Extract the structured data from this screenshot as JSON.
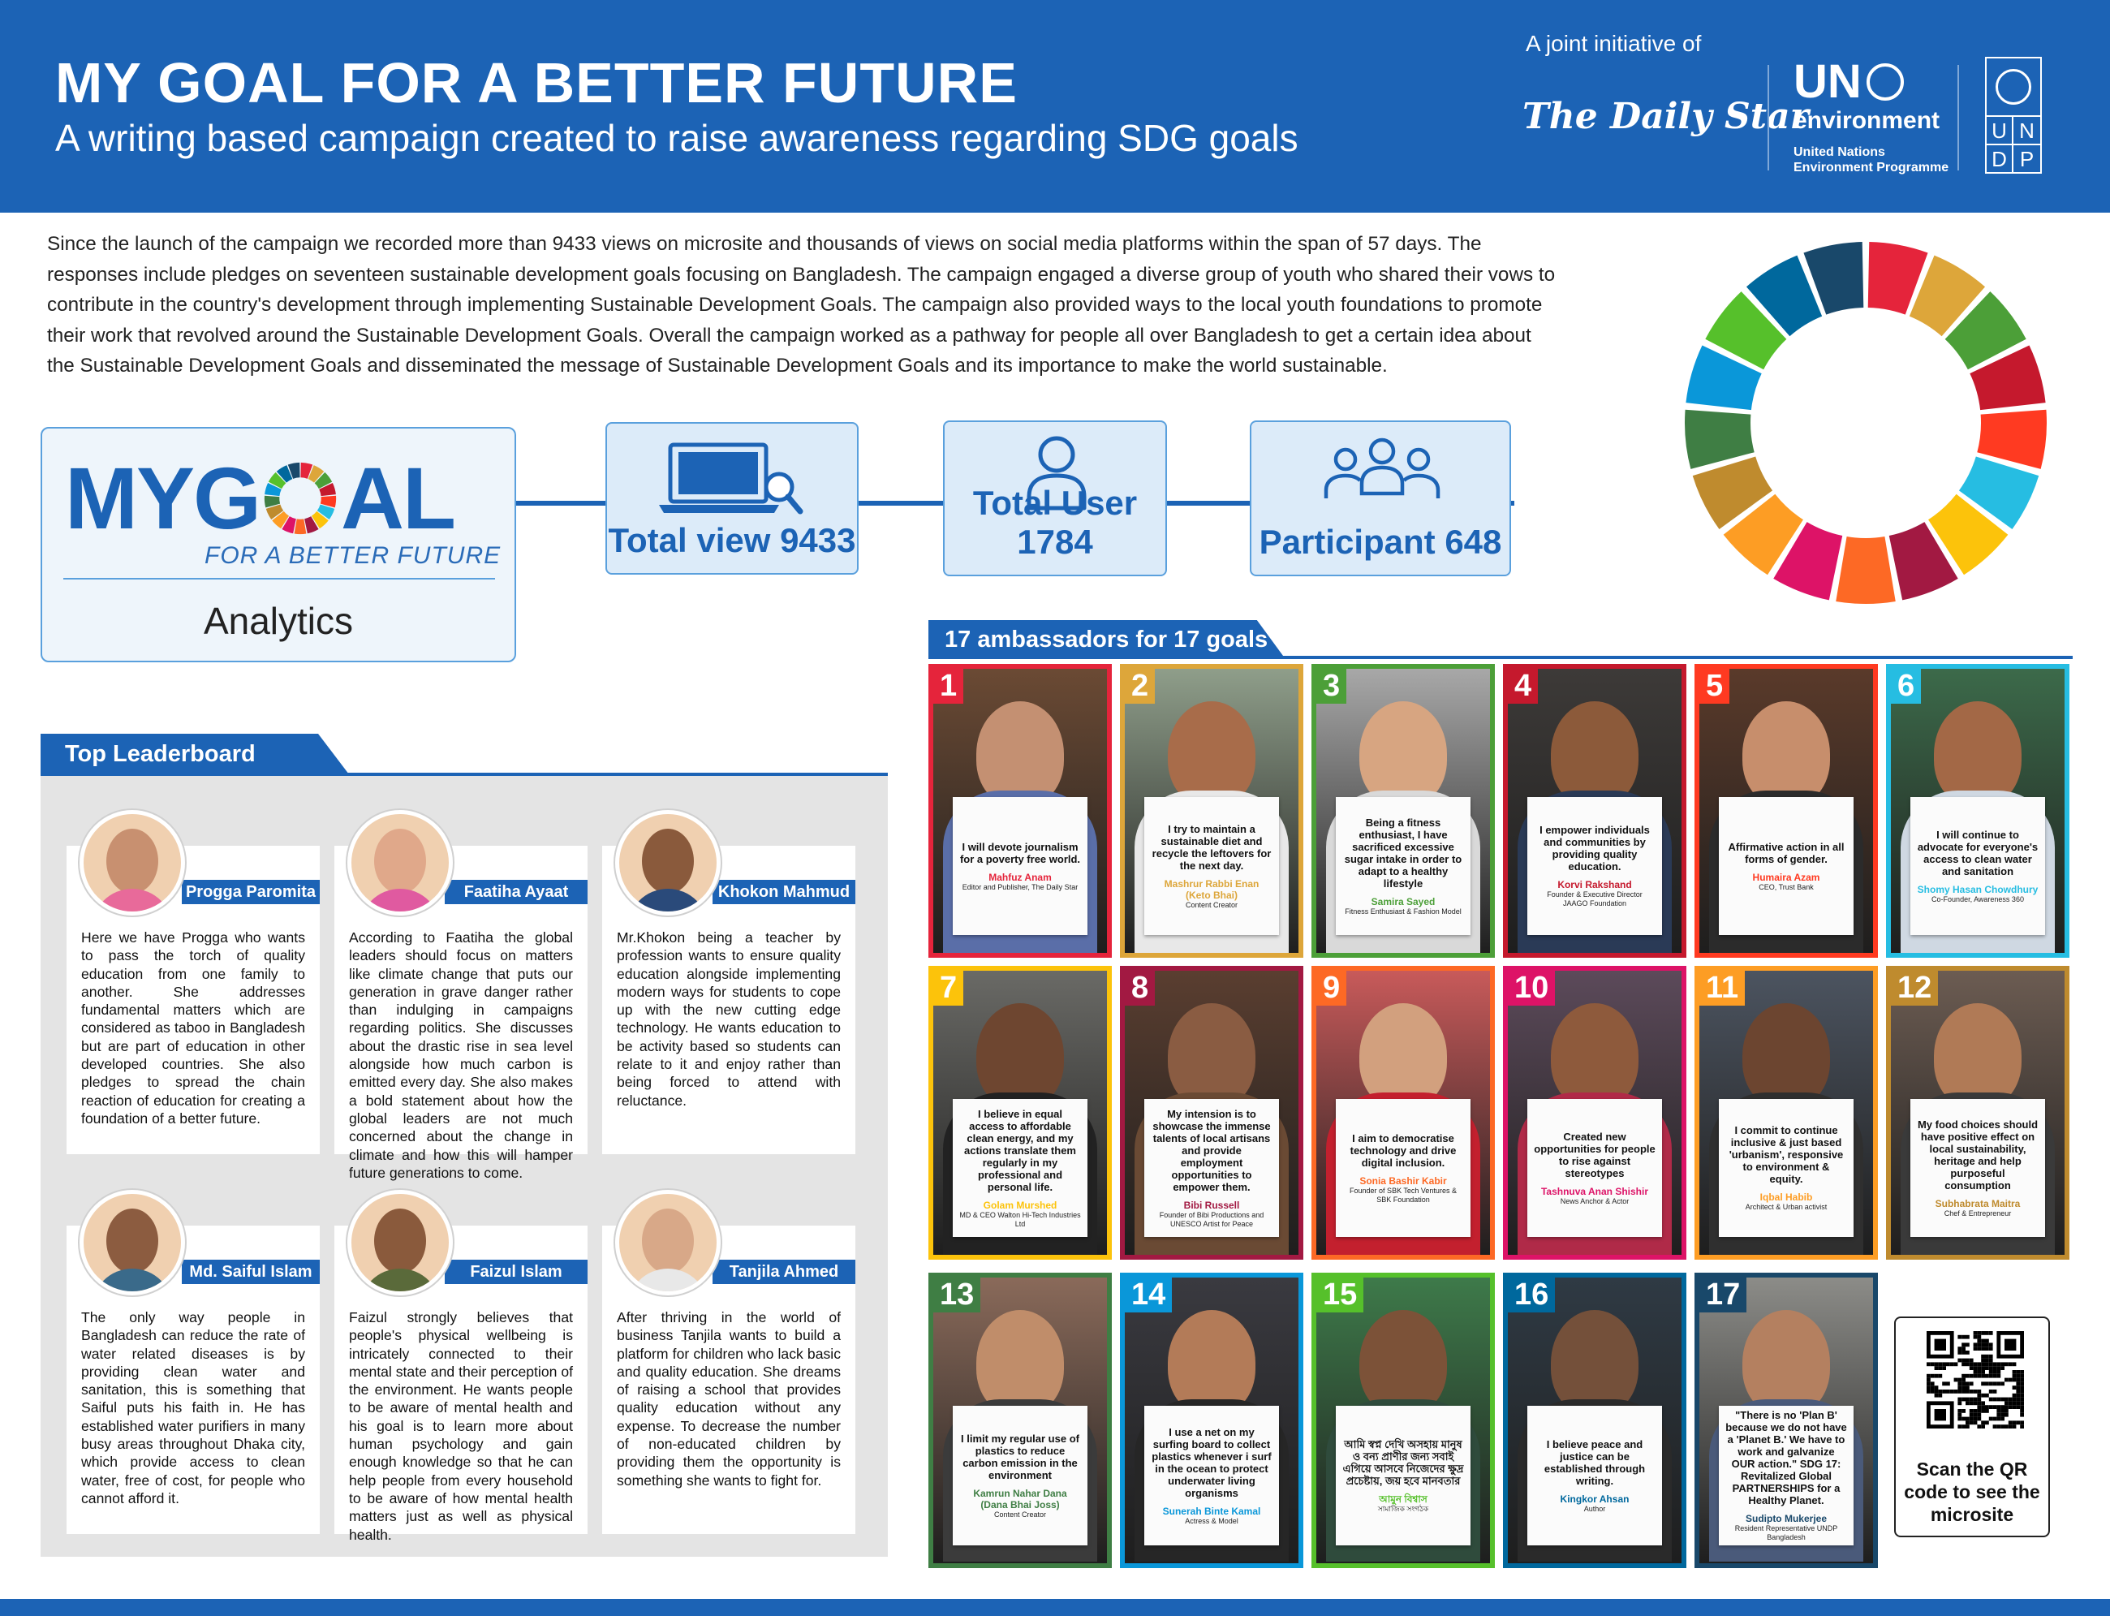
{
  "header": {
    "title": "MY GOAL FOR A BETTER FUTURE",
    "subtitle": "A writing based campaign created to raise awareness regarding SDG goals",
    "joint_label": "A joint initiative of",
    "daily_star": "The Daily Star",
    "unep_un": "UN",
    "unep_env": "environment",
    "unep_line1": "United Nations",
    "unep_line2": "Environment Programme",
    "undp_letters": [
      "U",
      "N",
      "D",
      "P"
    ]
  },
  "intro": "Since the launch of the campaign we recorded more than 9433 views on microsite and thousands of views on social media platforms within the span of 57 days. The responses include pledges on seventeen sustainable development goals focusing on Bangladesh. The campaign engaged a diverse group of youth who shared their vows to contribute in the country's development through implementing Sustainable Development Goals. The campaign also provided ways to the local youth foundations to promote their work that revolved around the Sustainable Development Goals. Overall the campaign worked as a pathway for people all over Bangladesh to get a certain idea about the Sustainable Development Goals and disseminated the message of Sustainable Development Goals and its importance to make the world sustainable.",
  "sdg_colors": [
    "#e5243b",
    "#dda63a",
    "#4c9f38",
    "#c5192d",
    "#ff3a21",
    "#26bde2",
    "#fcc30b",
    "#a21942",
    "#fd6925",
    "#dd1367",
    "#fd9d24",
    "#bf8b2e",
    "#3f7e44",
    "#0a97d9",
    "#56c02b",
    "#00689d",
    "#19486a"
  ],
  "analytics": {
    "logo_my": "MY",
    "logo_g": "G",
    "logo_al": "AL",
    "tagline": "FOR A BETTER FUTURE",
    "label": "Analytics",
    "total_view": "Total view 9433",
    "total_user": "Total User 1784",
    "participant": "Participant 648"
  },
  "ambassadors": {
    "heading": "17 ambassadors for 17 goals",
    "items": [
      {
        "n": "1",
        "quote": "I will devote journalism for a poverty free world.",
        "name": "Mahfuz Anam",
        "role": "Editor and Publisher, The Daily Star"
      },
      {
        "n": "2",
        "quote": "I try to maintain a sustainable diet and recycle the leftovers for the next day.",
        "name": "Mashrur Rabbi Enan (Keto Bhai)",
        "role": "Content Creator"
      },
      {
        "n": "3",
        "quote": "Being a fitness enthusiast, I have sacrificed excessive sugar intake in order to adapt to a healthy lifestyle",
        "name": "Samira Sayed",
        "role": "Fitness Enthusiast & Fashion Model"
      },
      {
        "n": "4",
        "quote": "I empower individuals and communities by providing quality education.",
        "name": "Korvi Rakshand",
        "role": "Founder & Executive Director JAAGO Foundation"
      },
      {
        "n": "5",
        "quote": "Affirmative action in all forms of gender.",
        "name": "Humaira Azam",
        "role": "CEO, Trust Bank"
      },
      {
        "n": "6",
        "quote": "I will continue to advocate for everyone's access to clean water and sanitation",
        "name": "Shomy Hasan Chowdhury",
        "role": "Co-Founder, Awareness 360"
      },
      {
        "n": "7",
        "quote": "I believe in equal access to affordable clean energy, and my actions translate them regularly in my professional and personal life.",
        "name": "Golam Murshed",
        "role": "MD & CEO Walton Hi-Tech Industries Ltd"
      },
      {
        "n": "8",
        "quote": "My intension is to showcase the immense talents of local artisans and provide employment opportunities to empower them.",
        "name": "Bibi Russell",
        "role": "Founder of Bibi Productions and UNESCO Artist for Peace"
      },
      {
        "n": "9",
        "quote": "I aim to democratise technology and drive digital inclusion.",
        "name": "Sonia Bashir Kabir",
        "role": "Founder of SBK Tech Ventures & SBK Foundation"
      },
      {
        "n": "10",
        "quote": "Created new opportunities for people to rise against stereotypes",
        "name": "Tashnuva Anan Shishir",
        "role": "News Anchor & Actor"
      },
      {
        "n": "11",
        "quote": "I commit to continue inclusive & just based 'urbanism', responsive to environment & equity.",
        "name": "Iqbal Habib",
        "role": "Architect & Urban activist"
      },
      {
        "n": "12",
        "quote": "My food choices should have positive effect on local sustainability, heritage and help purposeful consumption",
        "name": "Subhabrata Maitra",
        "role": "Chef & Entrepreneur"
      },
      {
        "n": "13",
        "quote": "I limit my regular use of plastics to reduce carbon emission in the environment",
        "name": "Kamrun Nahar Dana (Dana Bhai Joss)",
        "role": "Content Creator"
      },
      {
        "n": "14",
        "quote": "I use a net on my surfing board to collect plastics whenever i surf in the ocean to protect underwater living organisms",
        "name": "Sunerah Binte Kamal",
        "role": "Actress & Model"
      },
      {
        "n": "15",
        "quote": "আমি স্বপ্ন দেখি অসহায় মানুষ ও বন্য প্রাণীর জন্য সবাই এগিয়ে আসবে নিজেদের ক্ষুদ্র প্রচেষ্টায়, জয় হবে মানবতার",
        "name": "আমুন বিশ্বাস",
        "role": "সামাজিক সংগঠক"
      },
      {
        "n": "16",
        "quote": "I believe peace and justice can be established through writing.",
        "name": "Kingkor Ahsan",
        "role": "Author"
      },
      {
        "n": "17",
        "quote": "\"There is no 'Plan B' because we do not have a 'Planet B.' We have to work and galvanize OUR action.\" SDG 17: Revitalized Global PARTNERSHIPS for a Healthy Planet.",
        "name": "Sudipto Mukerjee",
        "role": "Resident Representative UNDP Bangladesh"
      }
    ]
  },
  "qr": {
    "caption": "Scan the QR code to see the microsite"
  },
  "leaderboard": {
    "heading": "Top Leaderboard",
    "entries": [
      {
        "name": "Progga Paromita",
        "text": "Here we have Progga who wants to pass the torch of quality education from one family to another. She addresses fundamental matters which are considered as taboo in Bangladesh but are part of education in other developed countries. She also pledges to spread the chain reaction of education for creating a foundation of a better future."
      },
      {
        "name": "Faatiha Ayaat",
        "text": "According to Faatiha the global leaders should focus on matters like climate change that puts our generation in grave danger rather than indulging in campaigns regarding politics. She discusses about the drastic rise in sea level alongside how much carbon is emitted every day. She also makes a bold statement about how the global leaders are not much concerned about the change in climate and how this will hamper future generations to come."
      },
      {
        "name": "Khokon Mahmud",
        "text": "Mr.Khokon being a teacher by profession wants to ensure quality education alongside implementing modern ways for students to cope up with the new cutting edge technology. He wants education to be activity based so students can relate to it and enjoy rather than being forced to attend with reluctance."
      },
      {
        "name": "Md. Saiful Islam",
        "text": "The only way people in Bangladesh can reduce the rate of water related diseases is by providing clean water and sanitation, this is something that Saiful puts his faith in. He has established water purifiers in many busy areas throughout Dhaka city, which provide access to clean water, free of cost, for people who cannot afford it."
      },
      {
        "name": "Faizul Islam",
        "text": "Faizul strongly believes that people's physical wellbeing is intricately connected to their mental state and their perception of the environment. He wants people to be aware of mental health and his goal is to learn more about human psychology and gain enough knowledge so that he can help people from every household to be aware of how mental health matters just as well as physical health."
      },
      {
        "name": "Tanjila Ahmed",
        "text": "After thriving in the world of business Tanjila wants to build a platform for children who lack basic and quality education. She dreams of raising a school that provides quality education without any expense. To decrease the number of non-educated children by providing them the opportunity is something she wants to fight for."
      }
    ]
  }
}
